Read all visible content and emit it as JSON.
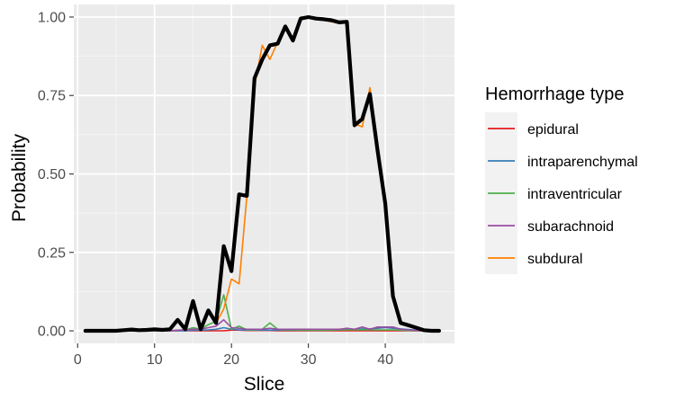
{
  "chart_data": {
    "type": "line",
    "xlabel": "Slice",
    "ylabel": "Probability",
    "xlim": [
      -0.5,
      49
    ],
    "ylim": [
      -0.04,
      1.04
    ],
    "x_ticks": [
      0,
      10,
      20,
      30,
      40
    ],
    "y_ticks": [
      0.0,
      0.25,
      0.5,
      0.75,
      1.0
    ],
    "y_tick_labels": [
      "0.00",
      "0.25",
      "0.50",
      "0.75",
      "1.00"
    ],
    "grid": true,
    "legend_title": "Hemorrhage type",
    "legend_position": "right",
    "x": [
      1,
      2,
      3,
      4,
      5,
      6,
      7,
      8,
      9,
      10,
      11,
      12,
      13,
      14,
      15,
      16,
      17,
      18,
      19,
      20,
      21,
      22,
      23,
      24,
      25,
      26,
      27,
      28,
      29,
      30,
      31,
      32,
      33,
      34,
      35,
      36,
      37,
      38,
      39,
      40,
      41,
      42,
      43,
      44,
      45,
      46,
      47
    ],
    "series": [
      {
        "name": "epidural",
        "color": "#E41A1C",
        "values": [
          0,
          0,
          0,
          0,
          0,
          0,
          0,
          0,
          0,
          0,
          0,
          0,
          0,
          0,
          0,
          0,
          0,
          0,
          0,
          0.002,
          0.002,
          0.001,
          0.001,
          0.001,
          0.001,
          0,
          0,
          0,
          0,
          0,
          0,
          0,
          0,
          0,
          0,
          0,
          0,
          0,
          0,
          0,
          0,
          0,
          0,
          0,
          0,
          0,
          0
        ]
      },
      {
        "name": "intraparenchymal",
        "color": "#377EB8",
        "values": [
          0,
          0,
          0,
          0,
          0,
          0,
          0,
          0,
          0,
          0,
          0,
          0,
          0,
          0,
          0.002,
          0.002,
          0.003,
          0.005,
          0.01,
          0.005,
          0.003,
          0.002,
          0.002,
          0.002,
          0.002,
          0.002,
          0.002,
          0.002,
          0.002,
          0.002,
          0.002,
          0.002,
          0.003,
          0.003,
          0.004,
          0.004,
          0.006,
          0.006,
          0.008,
          0.01,
          0.008,
          0.006,
          0.004,
          0.002,
          0.001,
          0,
          0
        ]
      },
      {
        "name": "intraventricular",
        "color": "#4DAF4A",
        "values": [
          0,
          0,
          0,
          0,
          0,
          0,
          0,
          0,
          0,
          0,
          0,
          0,
          0.002,
          0.003,
          0.01,
          0.005,
          0.02,
          0.03,
          0.115,
          0.005,
          0.015,
          0.003,
          0.003,
          0.005,
          0.025,
          0.005,
          0.003,
          0.003,
          0.002,
          0.002,
          0.002,
          0.002,
          0.002,
          0.003,
          0.003,
          0.003,
          0.003,
          0.003,
          0.003,
          0.003,
          0.003,
          0.002,
          0.001,
          0,
          0,
          0,
          0
        ]
      },
      {
        "name": "subarachnoid",
        "color": "#984EA3",
        "values": [
          0,
          0,
          0,
          0,
          0,
          0,
          0,
          0,
          0,
          0,
          0,
          0,
          0.002,
          0.003,
          0.005,
          0.005,
          0.01,
          0.015,
          0.035,
          0.01,
          0.008,
          0.005,
          0.005,
          0.005,
          0.008,
          0.005,
          0.005,
          0.005,
          0.005,
          0.005,
          0.005,
          0.005,
          0.005,
          0.005,
          0.008,
          0.005,
          0.012,
          0.005,
          0.012,
          0.012,
          0.012,
          0.005,
          0.003,
          0.001,
          0,
          0,
          0
        ]
      },
      {
        "name": "subdural",
        "color": "#FF7F00",
        "values": [
          0,
          0,
          0,
          0,
          0,
          0.002,
          0.003,
          0.002,
          0.003,
          0.005,
          0.003,
          0.005,
          0.03,
          0.002,
          0.09,
          0.005,
          0.06,
          0.025,
          0.07,
          0.165,
          0.15,
          0.43,
          0.78,
          0.91,
          0.865,
          0.92,
          0.965,
          0.93,
          1.0,
          1.0,
          0.995,
          0.99,
          0.985,
          0.98,
          0.985,
          0.66,
          0.65,
          0.775,
          0.6,
          0.41,
          0.11,
          0.03,
          0.015,
          0.01,
          0.003,
          0,
          0
        ]
      },
      {
        "name": "",
        "color": "#000000",
        "values": [
          0,
          0,
          0,
          0,
          0,
          0.002,
          0.004,
          0.002,
          0.003,
          0.005,
          0.003,
          0.005,
          0.035,
          0.005,
          0.095,
          0.005,
          0.065,
          0.025,
          0.27,
          0.19,
          0.435,
          0.43,
          0.805,
          0.865,
          0.91,
          0.915,
          0.97,
          0.925,
          0.995,
          1.0,
          0.995,
          0.993,
          0.99,
          0.983,
          0.985,
          0.655,
          0.675,
          0.755,
          0.575,
          0.405,
          0.11,
          0.025,
          0.018,
          0.01,
          0.002,
          0,
          0
        ]
      }
    ]
  }
}
